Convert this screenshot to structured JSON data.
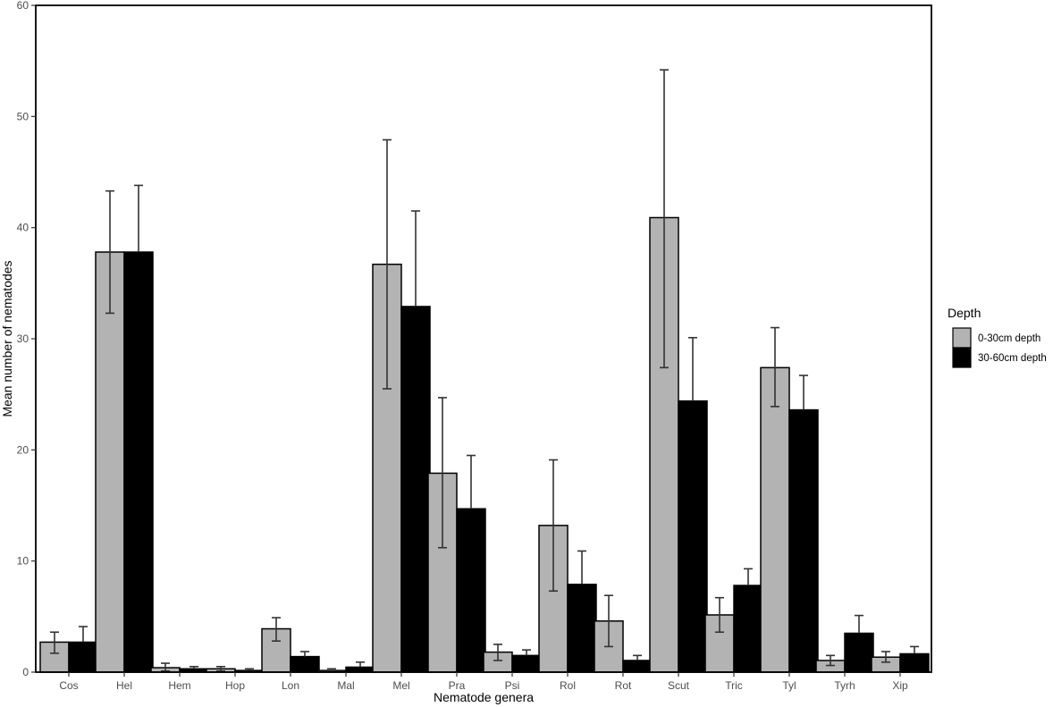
{
  "chart_data": {
    "type": "bar",
    "title": "",
    "xlabel": "Nematode genera",
    "ylabel": "Mean number of nematodes",
    "ylim": [
      0,
      60
    ],
    "yticks": [
      0,
      10,
      20,
      30,
      40,
      50,
      60
    ],
    "grid": false,
    "legend_position": "right",
    "legend_title": "Depth",
    "categories": [
      "Cos",
      "Hel",
      "Hem",
      "Hop",
      "Lon",
      "Mal",
      "Mel",
      "Pra",
      "Psi",
      "Rol",
      "Rot",
      "Scut",
      "Tric",
      "Tyl",
      "Tyrh",
      "Xip"
    ],
    "series": [
      {
        "name": "0-30cm depth",
        "color": "#b3b3b3",
        "values": [
          2.7,
          37.8,
          0.4,
          0.3,
          3.9,
          0.15,
          36.7,
          17.9,
          1.8,
          13.2,
          4.6,
          40.9,
          5.15,
          27.4,
          1.05,
          1.35
        ],
        "error_low": [
          1.7,
          32.3,
          0.1,
          0.1,
          2.8,
          0.05,
          25.5,
          11.2,
          1.05,
          7.3,
          2.3,
          27.4,
          3.6,
          23.9,
          0.6,
          0.9
        ],
        "error_high": [
          3.6,
          43.3,
          0.8,
          0.5,
          4.9,
          0.3,
          47.9,
          24.7,
          2.5,
          19.1,
          6.9,
          54.2,
          6.7,
          31.0,
          1.5,
          1.85
        ]
      },
      {
        "name": "30-60cm depth",
        "color": "#000000",
        "values": [
          2.7,
          37.8,
          0.3,
          0.15,
          1.4,
          0.45,
          32.9,
          14.7,
          1.5,
          7.9,
          1.05,
          24.4,
          7.8,
          23.6,
          3.5,
          1.65
        ],
        "error_low": [
          2.7,
          37.8,
          0.3,
          0.15,
          1.4,
          0.45,
          32.9,
          14.7,
          1.5,
          7.9,
          1.05,
          24.4,
          7.8,
          23.6,
          3.5,
          1.65
        ],
        "error_high": [
          4.1,
          43.8,
          0.5,
          0.3,
          1.85,
          0.9,
          41.5,
          19.5,
          2.0,
          10.9,
          1.5,
          30.1,
          9.3,
          26.7,
          5.1,
          2.3
        ]
      }
    ]
  }
}
